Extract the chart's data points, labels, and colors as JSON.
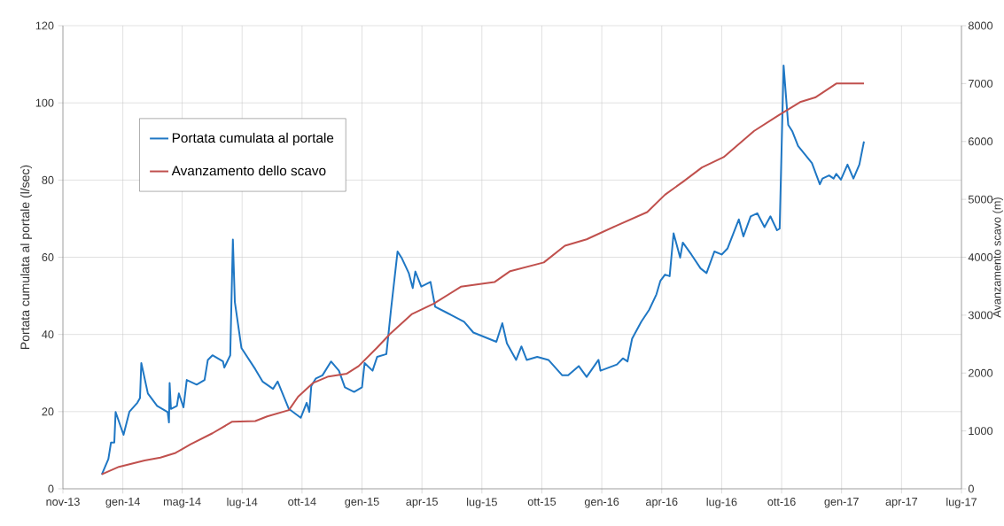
{
  "chart_data": {
    "type": "line",
    "ylabel": "Portata cumulata al portale (l/sec)",
    "y2label": "Avanzamento scavo (m)",
    "xlim": [
      "2013-11-01",
      "2017-07-27"
    ],
    "xticks": [
      {
        "value": "2013-11-01",
        "label": "nov-13"
      },
      {
        "value": "2014-01-31",
        "label": "gen-14"
      },
      {
        "value": "2014-05-01",
        "label": "mag-14"
      },
      {
        "value": "2014-07-31",
        "label": "lug-14"
      },
      {
        "value": "2014-10-30",
        "label": "ott-14"
      },
      {
        "value": "2015-01-29",
        "label": "gen-15"
      },
      {
        "value": "2015-04-30",
        "label": "apr-15"
      },
      {
        "value": "2015-07-30",
        "label": "lug-15"
      },
      {
        "value": "2015-10-29",
        "label": "ott-15"
      },
      {
        "value": "2016-01-28",
        "label": "gen-16"
      },
      {
        "value": "2016-04-28",
        "label": "apr-16"
      },
      {
        "value": "2016-07-28",
        "label": "lug-16"
      },
      {
        "value": "2016-10-27",
        "label": "ott-16"
      },
      {
        "value": "2017-01-26",
        "label": "gen-17"
      },
      {
        "value": "2017-04-27",
        "label": "apr-17"
      },
      {
        "value": "2017-07-27",
        "label": "lug-17"
      }
    ],
    "ylim": [
      0,
      120
    ],
    "yticks": [
      0,
      20,
      40,
      60,
      80,
      100,
      120
    ],
    "y2lim": [
      0,
      8000
    ],
    "y2ticks": [
      0,
      1000,
      2000,
      3000,
      4000,
      5000,
      6000,
      7000,
      8000
    ],
    "grid": true,
    "legend": "top left",
    "series": [
      {
        "name": "Portata cumulata al portale",
        "color": "#1f77c4",
        "axis": "y",
        "x": [
          "2013-12-30",
          "2014-01-09",
          "2014-01-13",
          "2014-01-18",
          "2014-01-20",
          "2014-02-01",
          "2014-02-10",
          "2014-02-22",
          "2014-02-26",
          "2014-02-28",
          "2014-03-10",
          "2014-03-24",
          "2014-04-09",
          "2014-04-11",
          "2014-04-12",
          "2014-04-14",
          "2014-04-23",
          "2014-04-26",
          "2014-05-03",
          "2014-05-08",
          "2014-05-23",
          "2014-06-04",
          "2014-06-09",
          "2014-06-16",
          "2014-07-02",
          "2014-07-04",
          "2014-07-13",
          "2014-07-17",
          "2014-07-20",
          "2014-07-30",
          "2014-08-20",
          "2014-08-31",
          "2014-09-16",
          "2014-09-23",
          "2014-10-10",
          "2014-10-28",
          "2014-11-06",
          "2014-11-10",
          "2014-11-13",
          "2014-11-20",
          "2014-11-30",
          "2014-12-13",
          "2014-12-25",
          "2015-01-03",
          "2015-01-17",
          "2015-01-29",
          "2015-02-02",
          "2015-02-14",
          "2015-02-21",
          "2015-03-07",
          "2015-03-14",
          "2015-03-24",
          "2015-03-30",
          "2015-04-10",
          "2015-04-16",
          "2015-04-20",
          "2015-04-29",
          "2015-05-13",
          "2015-05-20",
          "2015-06-07",
          "2015-07-03",
          "2015-07-17",
          "2015-08-21",
          "2015-08-30",
          "2015-09-06",
          "2015-09-20",
          "2015-09-28",
          "2015-10-06",
          "2015-10-22",
          "2015-11-08",
          "2015-11-29",
          "2015-12-08",
          "2015-12-24",
          "2016-01-05",
          "2016-01-23",
          "2016-01-26",
          "2016-02-20",
          "2016-02-29",
          "2016-03-07",
          "2016-03-14",
          "2016-03-28",
          "2016-04-09",
          "2016-04-20",
          "2016-04-26",
          "2016-05-03",
          "2016-05-10",
          "2016-05-16",
          "2016-05-26",
          "2016-05-30",
          "2016-06-12",
          "2016-06-26",
          "2016-07-05",
          "2016-07-17",
          "2016-07-28",
          "2016-08-06",
          "2016-08-23",
          "2016-08-30",
          "2016-09-10",
          "2016-09-20",
          "2016-10-01",
          "2016-10-10",
          "2016-10-20",
          "2016-10-24",
          "2016-10-30",
          "2016-11-06",
          "2016-11-12",
          "2016-11-21",
          "2016-12-12",
          "2016-12-24",
          "2016-12-28",
          "2017-01-07",
          "2017-01-14",
          "2017-01-18",
          "2017-01-25",
          "2017-02-04",
          "2017-02-13",
          "2017-02-22",
          "2017-03-01"
        ],
        "values": [
          3.7,
          7.7,
          12,
          12,
          19.9,
          14,
          20,
          22.3,
          23.5,
          32.6,
          24.7,
          21.5,
          19.9,
          17.2,
          27.4,
          20.7,
          21.5,
          24.7,
          21.1,
          28.2,
          27,
          28.2,
          33.4,
          34.6,
          33,
          31.4,
          34.6,
          64.6,
          48.4,
          36.5,
          31,
          27.8,
          25.9,
          27.8,
          20.7,
          18.4,
          22.3,
          19.9,
          26.6,
          28.6,
          29.4,
          33,
          30.6,
          26.3,
          25.1,
          26.3,
          32.6,
          30.6,
          34.2,
          34.9,
          46.4,
          61.5,
          59.9,
          55.9,
          52,
          56.3,
          52.4,
          53.6,
          47.2,
          45.6,
          43.3,
          40.5,
          38.1,
          42.9,
          37.7,
          33.4,
          36.9,
          33.4,
          34.2,
          33.4,
          29.4,
          29.4,
          31.8,
          29,
          33.4,
          30.6,
          32.2,
          33.8,
          33,
          38.9,
          43.3,
          46.4,
          50.4,
          53.9,
          55.5,
          55.1,
          66.2,
          59.9,
          63.8,
          60.7,
          57.1,
          55.9,
          61.5,
          60.7,
          62.3,
          69.8,
          65.4,
          70.6,
          71.4,
          67.8,
          70.6,
          67,
          67.4,
          109.7,
          94.3,
          92.7,
          88.8,
          84.4,
          78.9,
          80.4,
          81.2,
          80.4,
          81.6,
          80.1,
          84,
          80.4,
          84,
          90
        ]
      },
      {
        "name": "Avanzamento dello scavo",
        "color": "#c0504d",
        "axis": "y2",
        "x": [
          "2013-12-30",
          "2014-01-25",
          "2014-03-05",
          "2014-03-29",
          "2014-04-21",
          "2014-05-14",
          "2014-06-16",
          "2014-07-16",
          "2014-08-20",
          "2014-09-07",
          "2014-10-10",
          "2014-10-24",
          "2014-11-16",
          "2014-12-09",
          "2015-01-06",
          "2015-01-24",
          "2015-02-21",
          "2015-03-12",
          "2015-04-15",
          "2015-05-18",
          "2015-06-28",
          "2015-08-18",
          "2015-09-11",
          "2015-11-01",
          "2015-12-03",
          "2016-01-05",
          "2016-02-20",
          "2016-04-06",
          "2016-05-03",
          "2016-05-31",
          "2016-06-28",
          "2016-07-31",
          "2016-09-15",
          "2016-10-22",
          "2016-11-24",
          "2016-12-17",
          "2017-01-18",
          "2017-03-01"
        ],
        "values": [
          250,
          380,
          490,
          540,
          620,
          770,
          960,
          1160,
          1170,
          1250,
          1360,
          1590,
          1830,
          1940,
          1990,
          2120,
          2440,
          2670,
          3020,
          3200,
          3490,
          3570,
          3760,
          3910,
          4200,
          4310,
          4550,
          4780,
          5080,
          5310,
          5550,
          5730,
          6180,
          6450,
          6680,
          6760,
          7000,
          7000
        ]
      }
    ]
  }
}
